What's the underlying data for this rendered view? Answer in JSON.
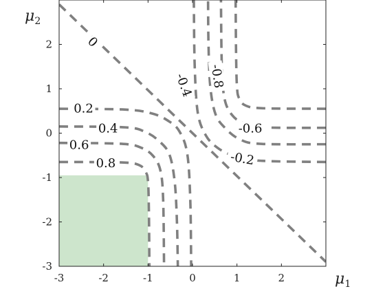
{
  "chart_data": {
    "type": "line",
    "xlabel": "μ",
    "xlabel_sub": "1",
    "ylabel": "μ",
    "ylabel_sub": "2",
    "xlim": [
      -3,
      3
    ],
    "ylim": [
      -3,
      3
    ],
    "x_ticks": [
      -3,
      -2,
      -1,
      0,
      1,
      2
    ],
    "y_ticks": [
      -3,
      -2,
      -1,
      0,
      1,
      2
    ],
    "x_tick_labels": [
      "-3",
      "-2",
      "-1",
      "0",
      "1",
      "2"
    ],
    "y_tick_labels": [
      "-3",
      "-2",
      "-1",
      "0",
      "1",
      "2"
    ],
    "grid": false,
    "contour_color": "#808080",
    "region": {
      "x": [
        -3,
        -1
      ],
      "y": [
        -3,
        -0.95
      ],
      "color": "#cde5cc"
    },
    "contours": [
      {
        "label": "0",
        "points": [
          [
            -3,
            2.9
          ],
          [
            3,
            -2.9
          ]
        ],
        "label_at": [
          -2.25,
          2.05
        ],
        "label_angle": 45
      },
      {
        "label": "0.2",
        "points": [
          [
            -3,
            0.55
          ],
          [
            -1.5,
            0.53
          ],
          [
            -0.9,
            0.44
          ],
          [
            -0.55,
            0.28
          ],
          [
            -0.3,
            0.05
          ],
          [
            -0.12,
            -0.45
          ],
          [
            -0.05,
            -1.5
          ],
          [
            -0.03,
            -3
          ]
        ],
        "label_at": [
          -2.45,
          0.55
        ],
        "label_angle": 0
      },
      {
        "label": "0.4",
        "points": [
          [
            -3,
            0.15
          ],
          [
            -1.5,
            0.13
          ],
          [
            -1.05,
            0.02
          ],
          [
            -0.75,
            -0.18
          ],
          [
            -0.52,
            -0.48
          ],
          [
            -0.4,
            -1.1
          ],
          [
            -0.35,
            -2
          ],
          [
            -0.33,
            -3
          ]
        ],
        "label_at": [
          -1.9,
          0.1
        ],
        "label_angle": 0
      },
      {
        "label": "0.6",
        "points": [
          [
            -3,
            -0.22
          ],
          [
            -1.6,
            -0.24
          ],
          [
            -1.15,
            -0.33
          ],
          [
            -0.88,
            -0.52
          ],
          [
            -0.72,
            -0.85
          ],
          [
            -0.66,
            -1.5
          ],
          [
            -0.64,
            -3
          ]
        ],
        "label_at": [
          -2.55,
          -0.27
        ],
        "label_angle": 0
      },
      {
        "label": "0.8",
        "points": [
          [
            -3,
            -0.65
          ],
          [
            -1.6,
            -0.66
          ],
          [
            -1.2,
            -0.72
          ],
          [
            -1.05,
            -0.88
          ],
          [
            -1,
            -1.1
          ],
          [
            -0.98,
            -1.8
          ],
          [
            -0.97,
            -3
          ]
        ],
        "label_at": [
          -1.95,
          -0.68
        ],
        "label_angle": 0
      },
      {
        "label": "-0.2",
        "points": [
          [
            3,
            -0.65
          ],
          [
            1.5,
            -0.62
          ],
          [
            0.9,
            -0.5
          ],
          [
            0.55,
            -0.32
          ],
          [
            0.3,
            -0.05
          ],
          [
            0.12,
            0.45
          ],
          [
            0.05,
            1.5
          ],
          [
            0.03,
            3
          ]
        ],
        "label_at": [
          1.12,
          -0.58
        ],
        "label_angle": 10
      },
      {
        "label": "-0.4",
        "points": [
          [
            3,
            -0.25
          ],
          [
            1.5,
            -0.24
          ],
          [
            1.05,
            -0.13
          ],
          [
            0.75,
            0.1
          ],
          [
            0.52,
            0.42
          ],
          [
            0.4,
            1.05
          ],
          [
            0.36,
            2
          ],
          [
            0.35,
            3
          ]
        ],
        "label_at": [
          -0.2,
          1.08
        ],
        "label_angle": 70
      },
      {
        "label": "-0.6",
        "points": [
          [
            3,
            0.12
          ],
          [
            1.6,
            0.13
          ],
          [
            1.15,
            0.22
          ],
          [
            0.88,
            0.42
          ],
          [
            0.72,
            0.78
          ],
          [
            0.66,
            1.5
          ],
          [
            0.64,
            3
          ]
        ],
        "label_at": [
          1.3,
          0.1
        ],
        "label_angle": 0
      },
      {
        "label": "-0.8",
        "points": [
          [
            3,
            0.55
          ],
          [
            1.6,
            0.56
          ],
          [
            1.2,
            0.62
          ],
          [
            1.05,
            0.78
          ],
          [
            1,
            1.05
          ],
          [
            0.98,
            1.8
          ],
          [
            0.97,
            3
          ]
        ],
        "label_at": [
          0.55,
          1.28
        ],
        "label_angle": 82
      }
    ]
  }
}
